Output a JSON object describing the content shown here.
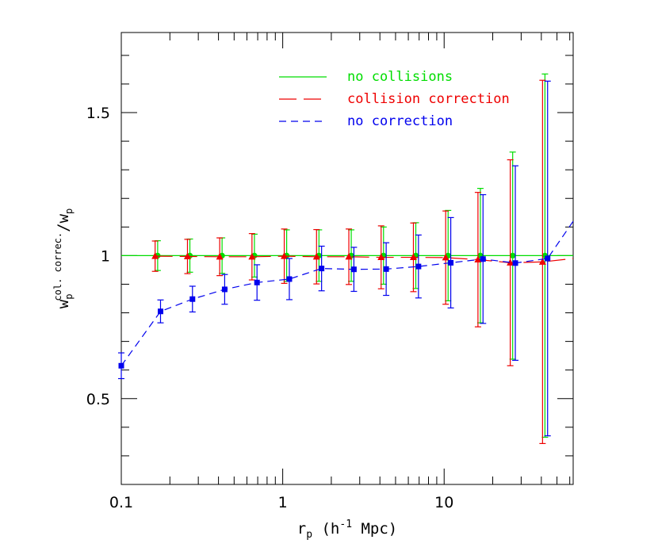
{
  "chart_data": {
    "type": "line",
    "title": "",
    "xlabel": {
      "base": "r",
      "sub": "p",
      "text": " (h",
      "sup": "-1",
      "tail": " Mpc)"
    },
    "ylabel": {
      "base": "w",
      "sub": "p",
      "sup": "col. correc.",
      "tail": "/w",
      "tail_sub": "p"
    },
    "xscale": "log",
    "xlim": [
      0.1,
      63
    ],
    "ylim": [
      0.2,
      1.78
    ],
    "x_ticks": [
      {
        "value": 0.1,
        "label": "0.1"
      },
      {
        "value": 1,
        "label": "1"
      },
      {
        "value": 10,
        "label": "10"
      }
    ],
    "y_ticks": [
      {
        "value": 0.5,
        "label": "0.5"
      },
      {
        "value": 1,
        "label": "1"
      },
      {
        "value": 1.5,
        "label": "1.5"
      }
    ],
    "legend_position": "top-center",
    "grid": false,
    "series": [
      {
        "name": "no collisions",
        "color": "#00dd00",
        "line_style": "solid",
        "marker": "circle",
        "x": [
          0.168,
          0.266,
          0.421,
          0.668,
          1.058,
          1.677,
          2.658,
          4.212,
          6.676,
          10.58,
          16.77,
          26.58,
          42.12
        ],
        "y": [
          1.0,
          1.0,
          1.0,
          1.0,
          1.0,
          1.0,
          1.0,
          1.0,
          1.0,
          1.0,
          1.0,
          1.0,
          1.0
        ],
        "err": [
          0.052,
          0.058,
          0.062,
          0.075,
          0.09,
          0.09,
          0.09,
          0.1,
          0.115,
          0.158,
          0.235,
          0.362,
          0.635
        ]
      },
      {
        "name": "collision correction",
        "color": "#ee0000",
        "line_style": "long-dash",
        "marker": "triangle",
        "x": [
          0.162,
          0.257,
          0.407,
          0.645,
          1.022,
          1.62,
          2.568,
          4.07,
          6.45,
          10.22,
          16.2,
          25.68,
          40.7,
          63.0
        ],
        "y": [
          0.998,
          0.997,
          0.996,
          0.996,
          0.998,
          0.996,
          0.996,
          0.994,
          0.994,
          0.993,
          0.986,
          0.975,
          0.978,
          0.99
        ],
        "err": [
          0.053,
          0.06,
          0.066,
          0.081,
          0.095,
          0.095,
          0.097,
          0.11,
          0.12,
          0.163,
          0.235,
          0.36,
          0.635,
          null
        ]
      },
      {
        "name": "no correction",
        "color": "#0000ee",
        "line_style": "short-dash",
        "marker": "square",
        "x": [
          0.1,
          0.175,
          0.276,
          0.437,
          0.693,
          1.099,
          1.741,
          2.76,
          4.374,
          6.933,
          10.99,
          17.41,
          27.6,
          43.74,
          63.0
        ],
        "y": [
          0.615,
          0.805,
          0.848,
          0.882,
          0.906,
          0.918,
          0.955,
          0.952,
          0.953,
          0.962,
          0.975,
          0.988,
          0.974,
          0.99,
          1.12
        ],
        "err": [
          0.045,
          0.04,
          0.045,
          0.052,
          0.062,
          0.072,
          0.078,
          0.077,
          0.092,
          0.11,
          0.158,
          0.225,
          0.34,
          0.62,
          null
        ]
      }
    ]
  }
}
